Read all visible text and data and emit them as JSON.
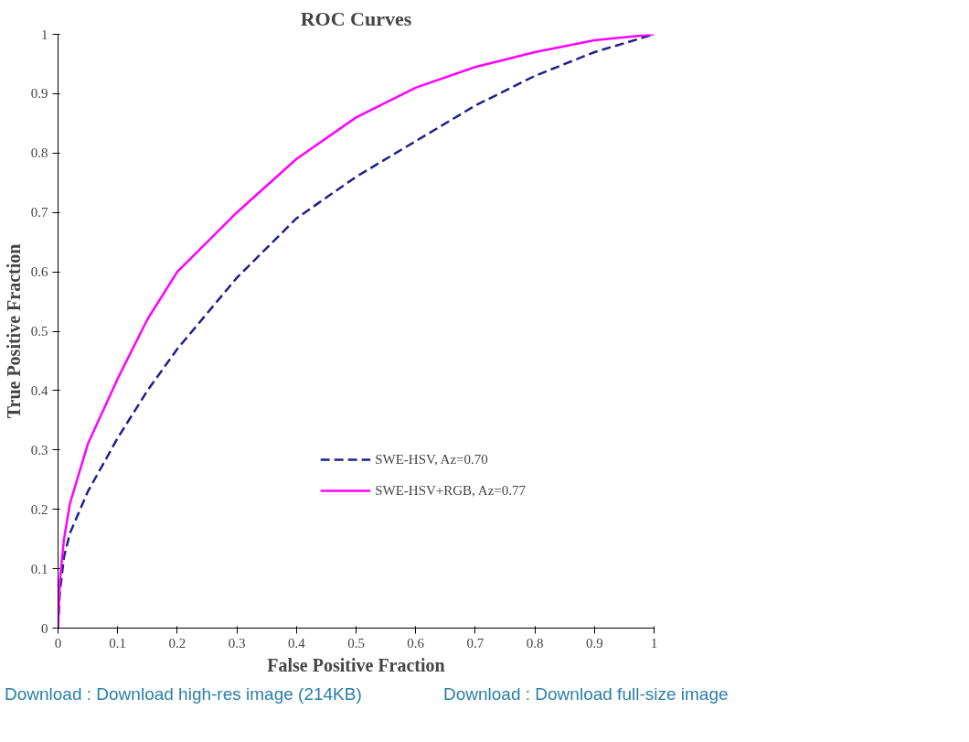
{
  "chart_data": {
    "type": "line",
    "title": "ROC Curves",
    "xlabel": "False Positive Fraction",
    "ylabel": "True Positive Fraction",
    "xlim": [
      0,
      1
    ],
    "ylim": [
      0,
      1
    ],
    "xticks": [
      0,
      0.1,
      0.2,
      0.3,
      0.4,
      0.5,
      0.6,
      0.7,
      0.8,
      0.9,
      1
    ],
    "yticks": [
      0,
      0.1,
      0.2,
      0.3,
      0.4,
      0.5,
      0.6,
      0.7,
      0.8,
      0.9,
      1
    ],
    "grid": false,
    "legend": "bottom right",
    "marker": "none",
    "series": [
      {
        "name": "SWE-HSV, Az=0.70",
        "color": "#1f1f8f",
        "line_style": "dashed",
        "x": [
          0,
          0.003,
          0.01,
          0.02,
          0.05,
          0.1,
          0.15,
          0.2,
          0.3,
          0.4,
          0.5,
          0.6,
          0.7,
          0.8,
          0.9,
          1
        ],
        "values": [
          0,
          0.06,
          0.12,
          0.16,
          0.23,
          0.32,
          0.4,
          0.47,
          0.59,
          0.69,
          0.76,
          0.82,
          0.88,
          0.93,
          0.97,
          1
        ]
      },
      {
        "name": "SWE-HSV+RGB, Az=0.77",
        "color": "#ff00ff",
        "line_style": "solid",
        "x": [
          0,
          0.003,
          0.01,
          0.02,
          0.05,
          0.1,
          0.15,
          0.2,
          0.3,
          0.4,
          0.5,
          0.6,
          0.7,
          0.8,
          0.9,
          1
        ],
        "values": [
          0,
          0.08,
          0.15,
          0.21,
          0.31,
          0.42,
          0.52,
          0.6,
          0.7,
          0.79,
          0.86,
          0.91,
          0.945,
          0.97,
          0.99,
          1
        ]
      }
    ],
    "annotations": [
      "Download : Download high-res image (214KB)",
      "Download : Download full-size image"
    ]
  }
}
